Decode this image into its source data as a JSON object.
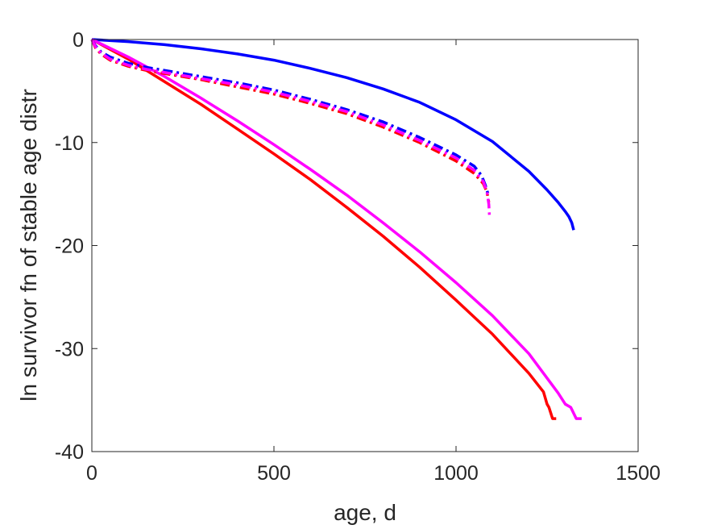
{
  "chart_data": {
    "type": "line",
    "title": "",
    "xlabel": "age, d",
    "ylabel": "ln survivor fn of stable age distr",
    "xlim": [
      0,
      1500
    ],
    "ylim": [
      -40,
      0
    ],
    "xticks": [
      0,
      500,
      1000,
      1500
    ],
    "yticks": [
      -40,
      -30,
      -20,
      -10,
      0
    ],
    "grid": false,
    "legend": "none",
    "series": [
      {
        "color": "#0000ff",
        "style": "solid",
        "x": [
          0,
          100,
          200,
          300,
          400,
          500,
          600,
          700,
          800,
          900,
          1000,
          1100,
          1200,
          1250,
          1280,
          1300,
          1310,
          1318,
          1323
        ],
        "y": [
          0,
          -0.2,
          -0.5,
          -0.9,
          -1.4,
          -2.0,
          -2.8,
          -3.7,
          -4.8,
          -6.1,
          -7.8,
          -9.9,
          -12.8,
          -14.6,
          -15.8,
          -16.7,
          -17.2,
          -17.8,
          -18.5
        ]
      },
      {
        "color": "#ff0000",
        "style": "solid",
        "x": [
          0,
          100,
          200,
          300,
          400,
          500,
          600,
          700,
          800,
          900,
          1000,
          1100,
          1200,
          1240,
          1250,
          1255,
          1265,
          1275
        ],
        "y": [
          0,
          -1.9,
          -4.1,
          -6.3,
          -8.7,
          -11.1,
          -13.6,
          -16.3,
          -19.1,
          -22.1,
          -25.3,
          -28.6,
          -32.4,
          -34.2,
          -35.4,
          -35.7,
          -36.8,
          -36.8
        ]
      },
      {
        "color": "#ff00ff",
        "style": "solid",
        "x": [
          0,
          100,
          200,
          300,
          400,
          500,
          600,
          700,
          800,
          900,
          1000,
          1100,
          1200,
          1280,
          1300,
          1315,
          1330,
          1345
        ],
        "y": [
          0,
          -1.7,
          -3.6,
          -5.7,
          -7.9,
          -10.2,
          -12.6,
          -15.1,
          -17.8,
          -20.6,
          -23.6,
          -26.8,
          -30.5,
          -34.3,
          -35.4,
          -35.7,
          -36.8,
          -36.8
        ]
      },
      {
        "color": "#0000ff",
        "style": "dashdot",
        "x": [
          0,
          10,
          25,
          50,
          100,
          150,
          200,
          300,
          400,
          500,
          600,
          700,
          800,
          900,
          1000,
          1050,
          1070,
          1080,
          1088
        ],
        "y": [
          0,
          -0.6,
          -1.2,
          -1.7,
          -2.3,
          -2.7,
          -3.0,
          -3.6,
          -4.2,
          -4.9,
          -5.8,
          -6.8,
          -8.0,
          -9.5,
          -11.2,
          -12.3,
          -13.2,
          -14.1,
          -15.0
        ]
      },
      {
        "color": "#ff0000",
        "style": "dashdot",
        "x": [
          0,
          10,
          25,
          50,
          100,
          150,
          200,
          300,
          400,
          500,
          600,
          700,
          800,
          900,
          1000,
          1050,
          1075,
          1085,
          1090
        ],
        "y": [
          0,
          -0.8,
          -1.4,
          -2.0,
          -2.6,
          -3.0,
          -3.3,
          -3.9,
          -4.6,
          -5.3,
          -6.2,
          -7.2,
          -8.5,
          -10.0,
          -11.8,
          -13.0,
          -14.0,
          -14.8,
          -15.8
        ]
      },
      {
        "color": "#ff00ff",
        "style": "dashdot",
        "x": [
          0,
          10,
          25,
          50,
          100,
          150,
          200,
          300,
          400,
          500,
          600,
          700,
          800,
          900,
          1000,
          1050,
          1075,
          1085,
          1090,
          1092
        ],
        "y": [
          0,
          -0.7,
          -1.3,
          -1.9,
          -2.5,
          -2.9,
          -3.2,
          -3.8,
          -4.4,
          -5.1,
          -6.0,
          -7.0,
          -8.3,
          -9.8,
          -11.5,
          -12.7,
          -13.8,
          -14.8,
          -16.0,
          -17.3
        ]
      }
    ]
  }
}
